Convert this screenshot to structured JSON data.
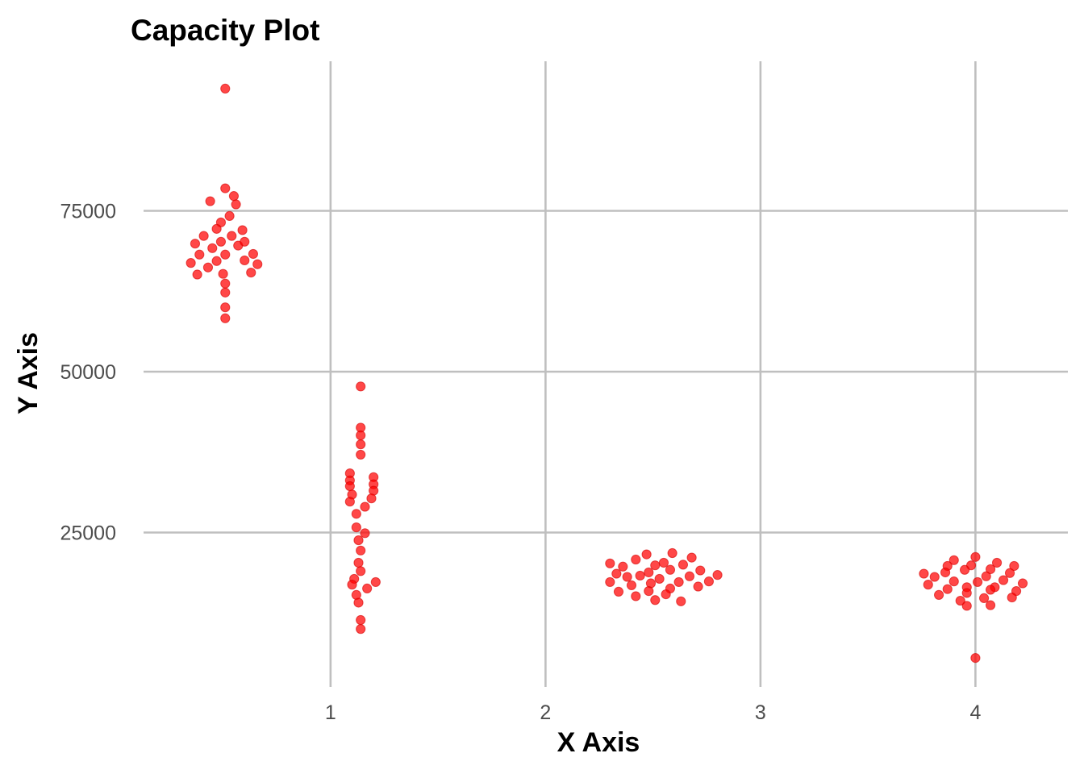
{
  "chart_data": {
    "type": "scatter",
    "title": "Capacity Plot",
    "xlabel": "X Axis",
    "ylabel": "Y Axis",
    "xlim": [
      0.07,
      4.43
    ],
    "ylim": [
      1000,
      99000
    ],
    "x_ticks": [
      1,
      2,
      3,
      4
    ],
    "y_ticks": [
      25000,
      50000,
      75000
    ],
    "grid": true,
    "legend": "none",
    "colors": {
      "point": "#ff0000",
      "grid": "#bfbfbf"
    },
    "series": [
      {
        "points": [
          [
            0.51,
            94000
          ],
          [
            0.51,
            78500
          ],
          [
            0.55,
            77300
          ],
          [
            0.44,
            76500
          ],
          [
            0.56,
            76000
          ],
          [
            0.53,
            74200
          ],
          [
            0.49,
            73200
          ],
          [
            0.47,
            72200
          ],
          [
            0.59,
            72000
          ],
          [
            0.41,
            71100
          ],
          [
            0.54,
            71100
          ],
          [
            0.45,
            69200
          ],
          [
            0.57,
            69600
          ],
          [
            0.37,
            69900
          ],
          [
            0.49,
            70200
          ],
          [
            0.6,
            70200
          ],
          [
            0.39,
            68200
          ],
          [
            0.51,
            68200
          ],
          [
            0.64,
            68300
          ],
          [
            0.47,
            67200
          ],
          [
            0.6,
            67300
          ],
          [
            0.35,
            66900
          ],
          [
            0.43,
            66200
          ],
          [
            0.66,
            66700
          ],
          [
            0.38,
            65100
          ],
          [
            0.5,
            65200
          ],
          [
            0.63,
            65400
          ],
          [
            0.51,
            63700
          ],
          [
            0.51,
            62300
          ],
          [
            0.51,
            60000
          ],
          [
            0.51,
            58300
          ],
          [
            1.14,
            47700
          ],
          [
            1.14,
            41300
          ],
          [
            1.14,
            40100
          ],
          [
            1.14,
            38700
          ],
          [
            1.14,
            37100
          ],
          [
            1.09,
            34200
          ],
          [
            1.2,
            33600
          ],
          [
            1.09,
            33100
          ],
          [
            1.2,
            32500
          ],
          [
            1.09,
            32200
          ],
          [
            1.2,
            31500
          ],
          [
            1.1,
            30900
          ],
          [
            1.19,
            30300
          ],
          [
            1.09,
            29800
          ],
          [
            1.16,
            29000
          ],
          [
            1.12,
            27900
          ],
          [
            1.12,
            25800
          ],
          [
            1.16,
            24900
          ],
          [
            1.13,
            23800
          ],
          [
            1.14,
            22200
          ],
          [
            1.13,
            20300
          ],
          [
            1.14,
            19000
          ],
          [
            1.11,
            17800
          ],
          [
            1.21,
            17300
          ],
          [
            1.1,
            16900
          ],
          [
            1.17,
            16300
          ],
          [
            1.12,
            15300
          ],
          [
            1.13,
            14100
          ],
          [
            1.14,
            11400
          ],
          [
            1.14,
            10000
          ],
          [
            2.3,
            20200
          ],
          [
            2.36,
            19700
          ],
          [
            2.42,
            20800
          ],
          [
            2.47,
            21600
          ],
          [
            2.51,
            19900
          ],
          [
            2.55,
            20300
          ],
          [
            2.59,
            21800
          ],
          [
            2.64,
            20000
          ],
          [
            2.68,
            21100
          ],
          [
            2.33,
            18600
          ],
          [
            2.38,
            18100
          ],
          [
            2.44,
            18300
          ],
          [
            2.48,
            18800
          ],
          [
            2.53,
            17800
          ],
          [
            2.58,
            19200
          ],
          [
            2.62,
            17300
          ],
          [
            2.67,
            18200
          ],
          [
            2.72,
            19100
          ],
          [
            2.8,
            18400
          ],
          [
            2.3,
            17300
          ],
          [
            2.4,
            16800
          ],
          [
            2.49,
            17100
          ],
          [
            2.58,
            16300
          ],
          [
            2.71,
            16600
          ],
          [
            2.76,
            17400
          ],
          [
            2.34,
            15800
          ],
          [
            2.42,
            15100
          ],
          [
            2.48,
            15900
          ],
          [
            2.56,
            15400
          ],
          [
            2.51,
            14500
          ],
          [
            2.63,
            14300
          ],
          [
            4.0,
            21200
          ],
          [
            3.9,
            20700
          ],
          [
            4.1,
            20300
          ],
          [
            3.87,
            19800
          ],
          [
            3.98,
            19900
          ],
          [
            4.18,
            19800
          ],
          [
            3.86,
            18800
          ],
          [
            3.95,
            19200
          ],
          [
            4.07,
            19300
          ],
          [
            3.76,
            18600
          ],
          [
            3.81,
            18100
          ],
          [
            4.05,
            18200
          ],
          [
            4.16,
            18700
          ],
          [
            3.9,
            17400
          ],
          [
            4.01,
            17300
          ],
          [
            4.13,
            17600
          ],
          [
            3.78,
            16900
          ],
          [
            4.09,
            16500
          ],
          [
            4.22,
            17100
          ],
          [
            3.87,
            16200
          ],
          [
            3.96,
            16500
          ],
          [
            4.07,
            16100
          ],
          [
            3.83,
            15300
          ],
          [
            3.96,
            15600
          ],
          [
            4.19,
            15900
          ],
          [
            3.93,
            14400
          ],
          [
            4.04,
            14800
          ],
          [
            4.17,
            14900
          ],
          [
            3.96,
            13600
          ],
          [
            4.07,
            13700
          ],
          [
            4.0,
            5500
          ]
        ]
      }
    ]
  }
}
